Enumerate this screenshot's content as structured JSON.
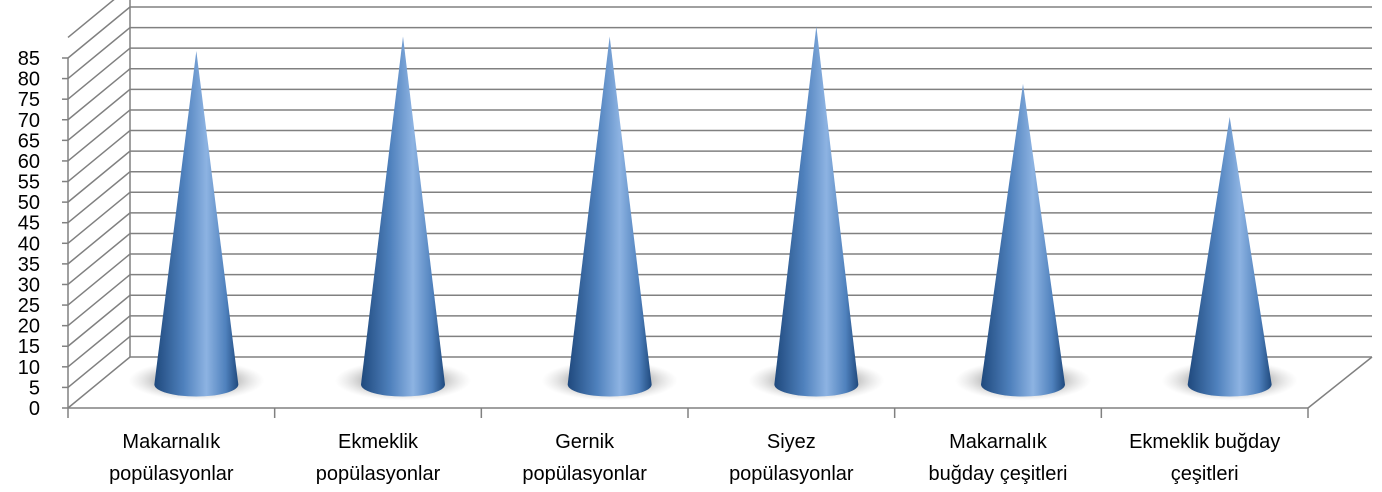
{
  "chart_data": {
    "type": "bar",
    "bar_shape": "cone",
    "style": "3d",
    "categories": [
      [
        "Makarnalık",
        "popülasyonlar"
      ],
      [
        "Ekmeklik",
        "popülasyonlar"
      ],
      [
        "Gernik",
        "popülasyonlar"
      ],
      [
        "Siyez",
        "popülasyonlar"
      ],
      [
        "Makarnalık",
        "buğday çeşitleri"
      ],
      [
        "Ekmeklik buğday",
        "çeşitleri"
      ]
    ],
    "values": [
      81,
      84.5,
      84.5,
      87,
      73,
      65
    ],
    "yticks": [
      "0",
      "5",
      "10",
      "15",
      "20",
      "25",
      "30",
      "35",
      "40",
      "45",
      "50",
      "55",
      "60",
      "65",
      "70",
      "75",
      "80",
      "85"
    ],
    "ylim": [
      0,
      85
    ],
    "ytick_step": 5,
    "grid": true,
    "legend": "none",
    "colors": {
      "cone_light": "#8DB3E2",
      "cone_mid": "#4F81BD",
      "cone_dark": "#1F497D",
      "grid": "#808080",
      "shadow": "#7F7F7F"
    }
  }
}
